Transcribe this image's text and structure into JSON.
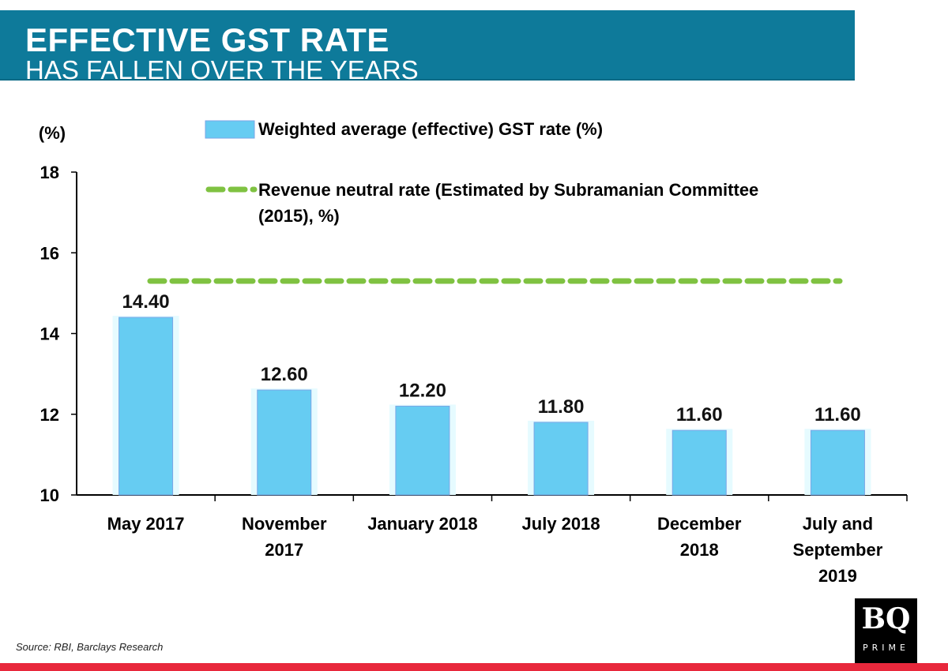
{
  "header": {
    "title": "EFFECTIVE GST RATE",
    "subtitle": "HAS FALLEN OVER THE YEARS"
  },
  "source": "Source: RBI, Barclays Research",
  "logo": {
    "text": "BQ",
    "subtext": "PRIME"
  },
  "colors": {
    "header": "#0e7a9a",
    "bar": "#66ccf2",
    "line": "#7fc241",
    "accent": "#e8283c"
  },
  "chart_data": {
    "type": "bar",
    "ylabel": "(%)",
    "ylim": [
      10,
      18
    ],
    "yticks": [
      "10",
      "12",
      "14",
      "16",
      "18"
    ],
    "categories": [
      [
        "May 2017"
      ],
      [
        "November",
        "2017"
      ],
      [
        "January 2018"
      ],
      [
        "July 2018"
      ],
      [
        "December",
        "2018"
      ],
      [
        "July and",
        "September",
        "2019"
      ]
    ],
    "series": [
      {
        "name": "Weighted average (effective) GST rate (%)",
        "type": "bar",
        "values": [
          14.4,
          12.6,
          12.2,
          11.8,
          11.6,
          11.6
        ],
        "labels": [
          "14.40",
          "12.60",
          "12.20",
          "11.80",
          "11.60",
          "11.60"
        ]
      },
      {
        "name": "Revenue neutral rate (Estimated by Subramanian Committee (2015), %)",
        "type": "line-dashed",
        "value": 15.3
      }
    ],
    "legend": {
      "position": "top",
      "lines": [
        [
          "Weighted average (effective) GST rate (%)"
        ],
        [
          "Revenue neutral rate (Estimated by Subramanian Committee",
          "(2015), %)"
        ]
      ]
    },
    "grid": false
  }
}
